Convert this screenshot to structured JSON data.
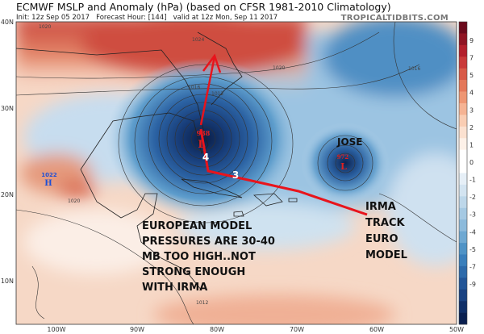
{
  "header": {
    "title": "ECMWF MSLP and Anomaly (hPa) (based on CFSR 1981-2010 Climatology)",
    "init": "Init: 12z Sep 05 2017",
    "forecast_hour": "Forecast Hour: [144]",
    "valid": "valid at 12z Mon, Sep 11 2017",
    "credit": "TROPICALTIDBITS.COM"
  },
  "axes": {
    "lat_labels": [
      "40N",
      "30N",
      "20N",
      "10N"
    ],
    "lon_labels": [
      "100W",
      "90W",
      "80W",
      "70W",
      "60W",
      "50W"
    ]
  },
  "colorbar": {
    "labels": [
      "9",
      "7",
      "5",
      "4",
      "3",
      "2",
      "1",
      "0",
      "-1",
      "-2",
      "-3",
      "-4",
      "-5",
      "-7",
      "-9"
    ],
    "colors": [
      "#6b0a1c",
      "#8f1423",
      "#b3202c",
      "#c93a3a",
      "#d85a48",
      "#e4785a",
      "#ee9673",
      "#f5b393",
      "#f9cdb3",
      "#fbe1d0",
      "#fdf1e8",
      "#ffffff",
      "#ffffff",
      "#e6eff7",
      "#d3e4f1",
      "#bdd7ea",
      "#a5c9e3",
      "#8cbadb",
      "#6ea8d2",
      "#4f93c6",
      "#3a7fbb",
      "#2d6aaa",
      "#225597",
      "#194282",
      "#0f2f68",
      "#0a2050"
    ]
  },
  "features": {
    "irma_low": {
      "pressure": "938",
      "symbol": "L"
    },
    "jose_low": {
      "name": "JOSE",
      "pressure": "972",
      "symbol": "L"
    },
    "high": {
      "pressure": "1022",
      "symbol": "H"
    },
    "track_day_labels": [
      "4",
      "3"
    ],
    "track_color": "#e8141c",
    "contour_labels": [
      "1020",
      "1024",
      "1020",
      "1016",
      "1012",
      "1016",
      "1020",
      "1012"
    ]
  },
  "annotations": {
    "european_model": [
      "EUROPEAN MODEL",
      "PRESSURES ARE 30-40",
      "MB TOO HIGH..NOT",
      "STRONG ENOUGH",
      "WITH IRMA"
    ],
    "irma_track": [
      "IRMA",
      "TRACK",
      "EURO",
      "MODEL"
    ]
  }
}
